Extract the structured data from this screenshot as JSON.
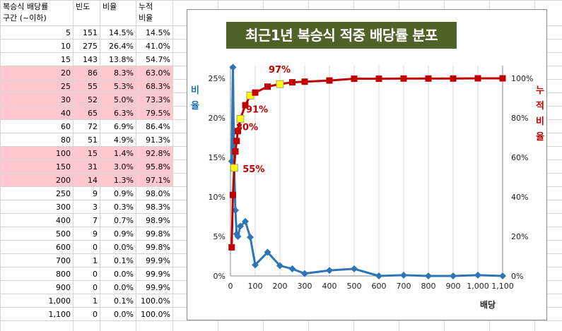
{
  "table": {
    "headers": {
      "range_line1": "복승식 배당률",
      "range_line2": "구간 (~이하)",
      "freq": "빈도",
      "ratio": "비율",
      "cum_line1": "누적",
      "cum_line2": "비율"
    },
    "rows": [
      {
        "range": "5",
        "freq": "151",
        "ratio": "14.5%",
        "cum": "14.5%",
        "hl": false
      },
      {
        "range": "10",
        "freq": "275",
        "ratio": "26.4%",
        "cum": "41.0%",
        "hl": false
      },
      {
        "range": "15",
        "freq": "143",
        "ratio": "13.8%",
        "cum": "54.7%",
        "hl": false
      },
      {
        "range": "20",
        "freq": "86",
        "ratio": "8.3%",
        "cum": "63.0%",
        "hl": true
      },
      {
        "range": "25",
        "freq": "55",
        "ratio": "5.3%",
        "cum": "68.3%",
        "hl": true
      },
      {
        "range": "30",
        "freq": "52",
        "ratio": "5.0%",
        "cum": "73.3%",
        "hl": true
      },
      {
        "range": "40",
        "freq": "65",
        "ratio": "6.3%",
        "cum": "79.5%",
        "hl": true
      },
      {
        "range": "60",
        "freq": "72",
        "ratio": "6.9%",
        "cum": "86.4%",
        "hl": false
      },
      {
        "range": "80",
        "freq": "51",
        "ratio": "4.9%",
        "cum": "91.3%",
        "hl": false
      },
      {
        "range": "100",
        "freq": "15",
        "ratio": "1.4%",
        "cum": "92.8%",
        "hl": true
      },
      {
        "range": "150",
        "freq": "31",
        "ratio": "3.0%",
        "cum": "95.8%",
        "hl": true
      },
      {
        "range": "200",
        "freq": "14",
        "ratio": "1.3%",
        "cum": "97.1%",
        "hl": true
      },
      {
        "range": "250",
        "freq": "9",
        "ratio": "0.9%",
        "cum": "98.0%",
        "hl": false
      },
      {
        "range": "300",
        "freq": "3",
        "ratio": "0.3%",
        "cum": "98.3%",
        "hl": false
      },
      {
        "range": "400",
        "freq": "7",
        "ratio": "0.7%",
        "cum": "98.9%",
        "hl": false
      },
      {
        "range": "500",
        "freq": "9",
        "ratio": "0.9%",
        "cum": "99.8%",
        "hl": false
      },
      {
        "range": "600",
        "freq": "0",
        "ratio": "0.0%",
        "cum": "99.8%",
        "hl": false
      },
      {
        "range": "700",
        "freq": "1",
        "ratio": "0.1%",
        "cum": "99.9%",
        "hl": false
      },
      {
        "range": "800",
        "freq": "0",
        "ratio": "0.0%",
        "cum": "99.9%",
        "hl": false
      },
      {
        "range": "900",
        "freq": "0",
        "ratio": "0.0%",
        "cum": "99.9%",
        "hl": false
      },
      {
        "range": "1,000",
        "freq": "1",
        "ratio": "0.1%",
        "cum": "100.0%",
        "hl": false
      },
      {
        "range": "1,100",
        "freq": "0",
        "ratio": "0.0%",
        "cum": "100.0%",
        "hl": false
      }
    ]
  },
  "colors": {
    "highlight_row": "#ffc7ce",
    "ratio_series": "#2e75b6",
    "cum_series": "#c00000",
    "cum_highlight_marker": "#ffff00",
    "title_bg": "#4f6228",
    "label_red": "#c00000",
    "label_blue": "#1f6fb2"
  },
  "chart_data": {
    "type": "line",
    "title": "최근1년 복승식 적중 배당률 분포",
    "xlabel": "배당",
    "ylabel_left": "비율",
    "ylabel_right": "누적비율",
    "xlim": [
      0,
      1100
    ],
    "xticks": [
      0,
      100,
      200,
      300,
      400,
      500,
      600,
      700,
      800,
      900,
      1000,
      1100
    ],
    "xtick_labels": [
      "0",
      "100",
      "200",
      "300",
      "400",
      "500",
      "600",
      "700",
      "800",
      "900",
      "1,000",
      "1,100"
    ],
    "ylim_left": [
      0,
      0.25
    ],
    "yticks_left": [
      0,
      0.05,
      0.1,
      0.15,
      0.2,
      0.25
    ],
    "ytick_labels_left": [
      "0%",
      "5%",
      "10%",
      "15%",
      "20%",
      "25%"
    ],
    "ylim_right": [
      0,
      1.0
    ],
    "yticks_right": [
      0,
      0.2,
      0.4,
      0.6,
      0.8,
      1.0
    ],
    "ytick_labels_right": [
      "0%",
      "20%",
      "40%",
      "60%",
      "80%",
      "100%"
    ],
    "grid": "vertical",
    "x": [
      5,
      10,
      15,
      20,
      25,
      30,
      40,
      60,
      80,
      100,
      150,
      200,
      250,
      300,
      400,
      500,
      600,
      700,
      800,
      900,
      1000,
      1100
    ],
    "series": [
      {
        "axis": "left",
        "marker": "diamond",
        "values": [
          0.145,
          0.264,
          0.138,
          0.083,
          0.053,
          0.05,
          0.063,
          0.069,
          0.049,
          0.014,
          0.03,
          0.013,
          0.009,
          0.003,
          0.007,
          0.009,
          0.0,
          0.001,
          0.0,
          0.0,
          0.001,
          0.0
        ]
      },
      {
        "axis": "right",
        "marker": "square",
        "values": [
          0.145,
          0.41,
          0.547,
          0.63,
          0.683,
          0.733,
          0.795,
          0.864,
          0.913,
          0.928,
          0.958,
          0.971,
          0.98,
          0.983,
          0.989,
          0.998,
          0.998,
          0.999,
          0.999,
          0.999,
          1.0,
          1.0
        ],
        "highlighted_x": [
          15,
          40,
          80,
          200
        ]
      }
    ],
    "annotations": [
      "55%",
      "80%",
      "91%",
      "97%"
    ]
  }
}
